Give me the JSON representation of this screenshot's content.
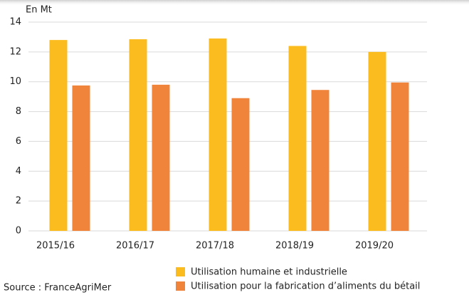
{
  "chart_data": {
    "type": "bar",
    "y_axis_label": "En Mt",
    "source": "Source : FranceAgriMer",
    "categories": [
      "2015/16",
      "2016/17",
      "2017/18",
      "2018/19",
      "2019/20"
    ],
    "series": [
      {
        "name": "Utilisation humaine et industrielle",
        "color": "#fbbc1f",
        "values": [
          12.8,
          12.85,
          12.9,
          12.4,
          12.0
        ]
      },
      {
        "name": "Utilisation pour la fabrication d’aliments du bétail",
        "color": "#f0843a",
        "values": [
          9.75,
          9.8,
          8.9,
          9.45,
          9.95
        ]
      }
    ],
    "ylim": [
      0,
      14
    ],
    "yticks": [
      0,
      2,
      4,
      6,
      8,
      10,
      12,
      14
    ],
    "grid": true
  }
}
